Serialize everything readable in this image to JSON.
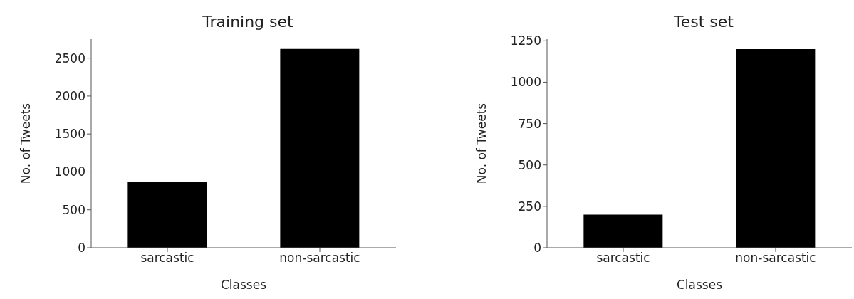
{
  "chart_data": [
    {
      "type": "bar",
      "title": "Training set",
      "xlabel": "Classes",
      "ylabel": "No. of Tweets",
      "categories": [
        "sarcastic",
        "non-sarcastic"
      ],
      "values": [
        870,
        2620
      ],
      "color": "#000000",
      "ylim": [
        0,
        2750
      ],
      "yticks": [
        0,
        500,
        1000,
        1500,
        2000,
        2500
      ],
      "grid": false
    },
    {
      "type": "bar",
      "title": "Test set",
      "xlabel": "Classes",
      "ylabel": "No. of Tweets",
      "categories": [
        "sarcastic",
        "non-sarcastic"
      ],
      "values": [
        200,
        1200
      ],
      "color": "#000000",
      "ylim": [
        0,
        1260
      ],
      "yticks": [
        0,
        250,
        500,
        750,
        1000,
        1250
      ],
      "grid": false
    }
  ]
}
